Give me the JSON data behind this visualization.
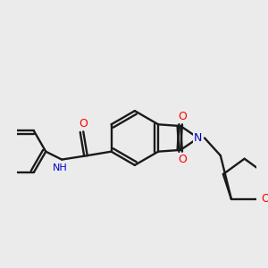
{
  "background_color": "#ebebeb",
  "bond_color": "#1a1a1a",
  "atom_colors": {
    "O": "#ff0000",
    "N": "#0000cd",
    "I": "#cc00cc",
    "C": "#1a1a1a"
  },
  "figsize": [
    3.0,
    3.0
  ],
  "dpi": 100
}
